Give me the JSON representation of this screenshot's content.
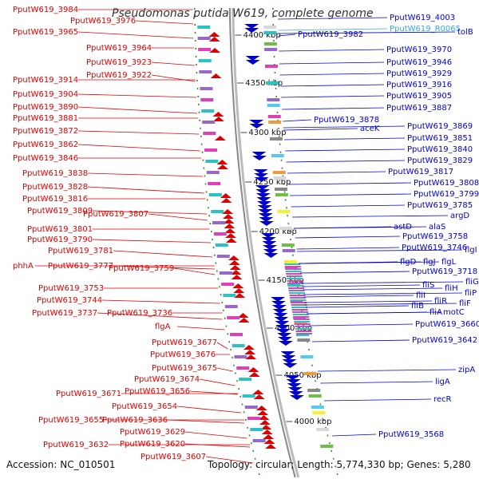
{
  "title": "Pseudomonas putida W619, complete genome",
  "accession": "Accession: NC_010501",
  "topology": "Topology: circular; Length: 5,774,330 bp; Genes: 5,280",
  "colors": {
    "forward": "#dd0000",
    "reverse": "#0000cc",
    "rna": "#33aadd",
    "backbone": "#888888",
    "tick": "#228822"
  },
  "scale_ticks": [
    "4400 kbp",
    "4350 kbp",
    "4300 kbp",
    "4250 kbp",
    "4200 kbp",
    "4150 kbp",
    "4100 kbp",
    "4050 kbp",
    "4000 kbp"
  ],
  "left_labels": [
    "PputW619_3984",
    "PputW619_3976",
    "PputW619_3965",
    "PputW619_3964",
    "PputW619_3923",
    "PputW619_3922",
    "PputW619_3914",
    "PputW619_3904",
    "PputW619_3890",
    "PputW619_3881",
    "PputW619_3872",
    "PputW619_3862",
    "PputW619_3846",
    "PputW619_3838",
    "PputW619_3828",
    "PputW619_3816",
    "PputW619_3809",
    "PputW619_3807",
    "PputW619_3801",
    "PputW619_3790",
    "PputW619_3781",
    "phhA",
    "PputW619_3777",
    "PputW619_3759",
    "PputW619_3753",
    "PputW619_3744",
    "PputW619_3737",
    "PputW619_3736",
    "flgA",
    "PputW619_3677",
    "PputW619_3676",
    "PputW619_3675",
    "PputW619_3674",
    "PputW619_3671",
    "PputW619_3656",
    "PputW619_3654",
    "PputW619_3655",
    "PputW619_3636",
    "PputW619_3629",
    "PputW619_3632",
    "PputW619_3620",
    "PputW619_3607"
  ],
  "right_labels": [
    "PputW619_4003",
    "PputW619_R0065",
    "tolB",
    "PputW619_3982",
    "PputW619_3970",
    "PputW619_3946",
    "PputW619_3929",
    "PputW619_3916",
    "PputW619_3905",
    "PputW619_3887",
    "PputW619_3878",
    "aceK",
    "PputW619_3869",
    "PputW619_3851",
    "PputW619_3840",
    "PputW619_3829",
    "PputW619_3817",
    "PputW619_3808",
    "PputW619_3799",
    "PputW619_3785",
    "argD",
    "astD",
    "alaS",
    "PputW619_3758",
    "PputW619_3746",
    "flgI",
    "flgD",
    "flgJ",
    "flgL",
    "PputW619_3718",
    "fliS",
    "fliH",
    "fliG",
    "fliI",
    "fliP",
    "fliR",
    "fliB",
    "fliF",
    "fliA",
    "motC",
    "PputW619_3660",
    "PputW619_3642",
    "zipA",
    "ligA",
    "recR",
    "PputW619_3568"
  ]
}
